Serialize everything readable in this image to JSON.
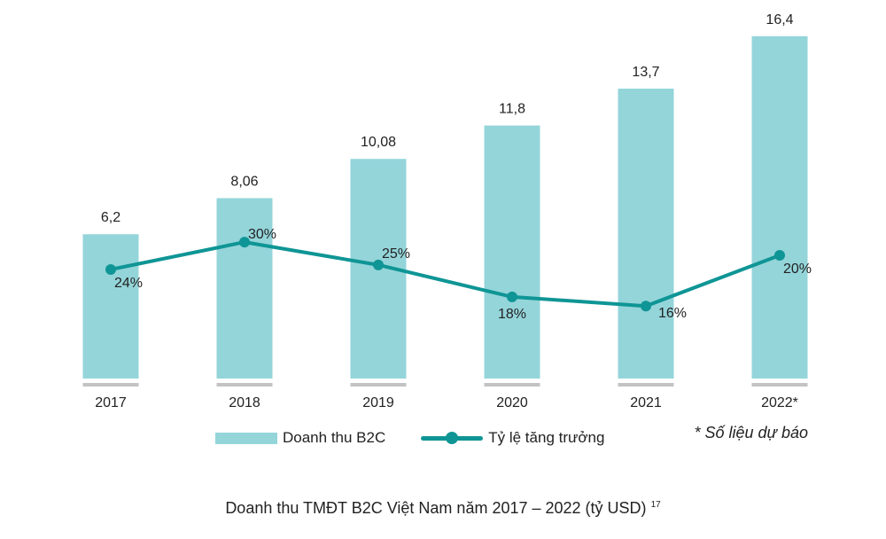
{
  "chart_data": {
    "type": "bar",
    "title": "Doanh thu TMĐT B2C Việt Nam năm 2017 – 2022 (tỷ USD)",
    "footnote_ref": "17",
    "categories": [
      "2017",
      "2018",
      "2019",
      "2020",
      "2021",
      "2022*"
    ],
    "series": [
      {
        "name": "Doanh thu B2C",
        "type": "bar",
        "values": [
          6.2,
          8.06,
          10.08,
          11.8,
          13.7,
          16.4
        ],
        "labels": [
          "6,2",
          "8,06",
          "10,08",
          "11,8",
          "13,7",
          "16,4"
        ],
        "color": "#94d5da"
      },
      {
        "name": "Tỷ lệ tăng trưởng",
        "type": "line",
        "values": [
          24,
          30,
          25,
          18,
          16,
          20
        ],
        "labels": [
          "24%",
          "30%",
          "25%",
          "18%",
          "16%",
          "20%"
        ],
        "color": "#0f9595"
      }
    ],
    "note": "* Số liệu dự báo",
    "legend": "bottom"
  }
}
